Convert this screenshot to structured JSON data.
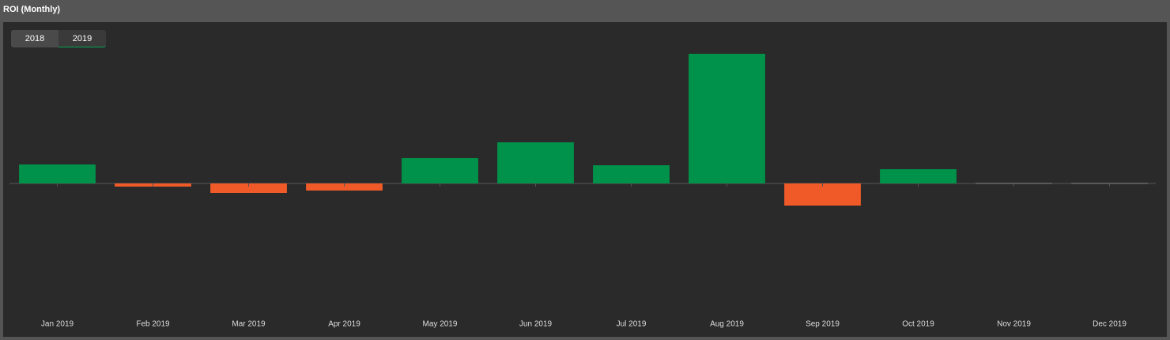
{
  "title": "ROI (Monthly)",
  "tabs": {
    "items": [
      "2018",
      "2019"
    ],
    "active": 1
  },
  "chart_data": {
    "type": "bar",
    "categories": [
      "Jan 2019",
      "Feb 2019",
      "Mar 2019",
      "Apr 2019",
      "May 2019",
      "Jun 2019",
      "Jul 2019",
      "Aug 2019",
      "Sep 2019",
      "Oct 2019",
      "Nov 2019",
      "Dec 2019"
    ],
    "values": [
      24,
      -4,
      -12,
      -9,
      32,
      52,
      23,
      164,
      -28,
      18,
      0,
      0
    ],
    "ylim": [
      -160,
      180
    ],
    "positive_color": "#00924a",
    "negative_color": "#f05a28",
    "zero_color": "#888888"
  }
}
